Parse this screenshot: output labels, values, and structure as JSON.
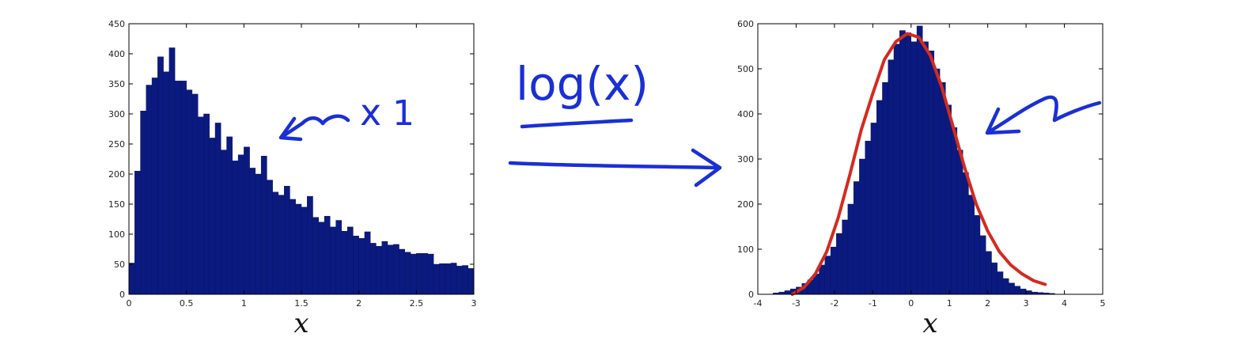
{
  "chart_data": [
    {
      "type": "bar",
      "name": "raw-histogram",
      "title": "",
      "xlabel": "x",
      "ylabel": "",
      "xlim": [
        0,
        3
      ],
      "ylim": [
        0,
        450
      ],
      "bin_start": 0,
      "bin_width": 0.05,
      "xticks": [
        "0",
        "0.5",
        "1",
        "1.5",
        "2",
        "2.5",
        "3"
      ],
      "yticks": [
        "0",
        "50",
        "100",
        "150",
        "200",
        "250",
        "300",
        "350",
        "400",
        "450"
      ],
      "values": [
        52,
        205,
        305,
        348,
        360,
        395,
        370,
        410,
        355,
        355,
        340,
        333,
        295,
        300,
        260,
        285,
        240,
        262,
        222,
        232,
        245,
        210,
        200,
        230,
        190,
        170,
        165,
        180,
        158,
        150,
        145,
        163,
        128,
        120,
        130,
        112,
        123,
        105,
        112,
        97,
        93,
        104,
        85,
        80,
        88,
        82,
        83,
        75,
        70,
        67,
        68,
        68,
        67,
        50,
        51,
        51,
        52,
        47,
        48,
        43,
        40
      ]
    },
    {
      "type": "bar",
      "name": "log-histogram",
      "title": "",
      "xlabel": "x",
      "ylabel": "",
      "xlim": [
        -4,
        5
      ],
      "ylim": [
        0,
        600
      ],
      "bin_start": -3.6,
      "bin_width": 0.15,
      "xticks": [
        "-4",
        "-3",
        "-2",
        "-1",
        "0",
        "1",
        "2",
        "3",
        "4",
        "5"
      ],
      "yticks": [
        "0",
        "100",
        "200",
        "300",
        "400",
        "500",
        "600"
      ],
      "values": [
        3,
        5,
        8,
        12,
        16,
        24,
        32,
        45,
        65,
        85,
        105,
        135,
        165,
        200,
        250,
        300,
        340,
        380,
        430,
        470,
        520,
        555,
        585,
        580,
        560,
        595,
        560,
        540,
        500,
        470,
        420,
        370,
        320,
        270,
        220,
        175,
        130,
        95,
        70,
        50,
        35,
        25,
        18,
        12,
        8,
        5,
        4,
        3,
        2
      ],
      "fit_curve": {
        "color": "#d42a1f",
        "x": [
          -3.1,
          -2.8,
          -2.5,
          -2.2,
          -1.9,
          -1.6,
          -1.3,
          -1.0,
          -0.7,
          -0.4,
          -0.1,
          0.2,
          0.5,
          0.8,
          1.1,
          1.4,
          1.7,
          2.0,
          2.3,
          2.6,
          2.9,
          3.2,
          3.5
        ],
        "y": [
          0,
          15,
          45,
          95,
          170,
          265,
          365,
          445,
          520,
          560,
          578,
          570,
          530,
          460,
          370,
          280,
          200,
          140,
          95,
          65,
          45,
          30,
          22
        ]
      }
    }
  ],
  "annotations": {
    "arrow_label": "log(x)",
    "left_note": "x",
    "left_note_subscript": "1"
  },
  "colors": {
    "bar": "#0b1a80",
    "ink": "#1a2fd6",
    "fit": "#d42a1f"
  }
}
